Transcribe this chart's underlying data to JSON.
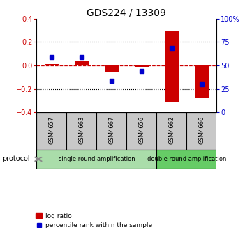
{
  "title": "GDS224 / 13309",
  "samples": [
    "GSM4657",
    "GSM4663",
    "GSM4667",
    "GSM4656",
    "GSM4662",
    "GSM4666"
  ],
  "bar_heights": [
    0.01,
    0.04,
    -0.06,
    -0.01,
    0.61,
    -0.28
  ],
  "bar_bottoms": [
    0.0,
    0.0,
    0.0,
    0.0,
    -0.31,
    0.0
  ],
  "percentile_rank_pct": [
    59,
    59,
    34,
    44,
    69,
    30
  ],
  "red_color": "#cc0000",
  "blue_color": "#0000cc",
  "ylim_left": [
    -0.4,
    0.4
  ],
  "ylim_right": [
    0,
    100
  ],
  "yticks_left": [
    -0.4,
    -0.2,
    0.0,
    0.2,
    0.4
  ],
  "yticks_right": [
    0,
    25,
    50,
    75,
    100
  ],
  "ytick_labels_right": [
    "0",
    "25",
    "50",
    "75",
    "100%"
  ],
  "hlines_dotted": [
    -0.2,
    0.2
  ],
  "sample_box_color": "#c8c8c8",
  "protocol_single_color": "#aaddaa",
  "protocol_double_color": "#66cc66",
  "protocol_single_label": "single round amplification",
  "protocol_double_label": "double round amplification",
  "protocol_label": "protocol",
  "legend_red_label": "log ratio",
  "legend_blue_label": "percentile rank within the sample",
  "n_single": 4,
  "n_double": 2
}
